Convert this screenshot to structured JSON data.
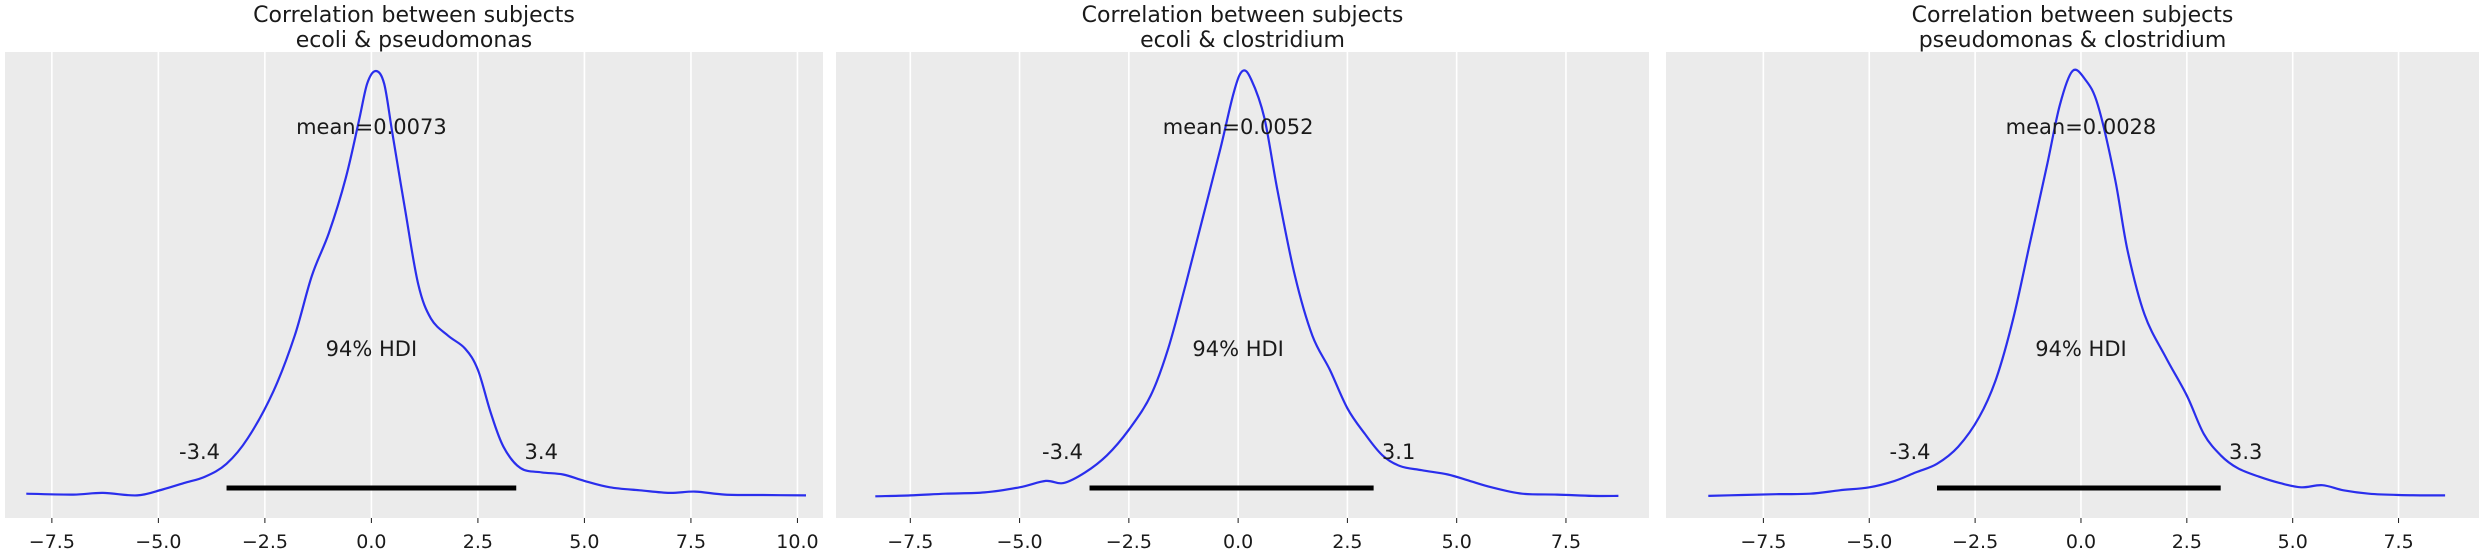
{
  "chart_data": [
    {
      "type": "area",
      "title_line1": "Correlation between subjects",
      "title_line2": "ecoli & pseudomonas",
      "mean_label": "mean=0.0073",
      "hdi_label": "94% HDI",
      "hdi_low": -3.4,
      "hdi_high": 3.4,
      "hdi_low_label": "-3.4",
      "hdi_high_label": "3.4",
      "xlim": [
        -8.6,
        10.6
      ],
      "xticks": [
        -7.5,
        -5.0,
        -2.5,
        0.0,
        2.5,
        5.0,
        7.5,
        10.0
      ],
      "xtick_labels": [
        "−7.5",
        "−5.0",
        "−2.5",
        "0.0",
        "2.5",
        "5.0",
        "7.5",
        "10.0"
      ],
      "density": [
        [
          -8.1,
          0.01
        ],
        [
          -7.0,
          0.008
        ],
        [
          -6.3,
          0.012
        ],
        [
          -5.5,
          0.006
        ],
        [
          -4.9,
          0.02
        ],
        [
          -4.4,
          0.035
        ],
        [
          -3.9,
          0.05
        ],
        [
          -3.4,
          0.08
        ],
        [
          -2.9,
          0.14
        ],
        [
          -2.3,
          0.25
        ],
        [
          -1.8,
          0.38
        ],
        [
          -1.4,
          0.52
        ],
        [
          -1.0,
          0.62
        ],
        [
          -0.6,
          0.75
        ],
        [
          -0.3,
          0.88
        ],
        [
          -0.1,
          0.97
        ],
        [
          0.1,
          1.0
        ],
        [
          0.3,
          0.97
        ],
        [
          0.5,
          0.85
        ],
        [
          0.8,
          0.67
        ],
        [
          1.1,
          0.5
        ],
        [
          1.4,
          0.42
        ],
        [
          1.8,
          0.38
        ],
        [
          2.2,
          0.35
        ],
        [
          2.5,
          0.3
        ],
        [
          2.8,
          0.2
        ],
        [
          3.1,
          0.12
        ],
        [
          3.5,
          0.07
        ],
        [
          4.0,
          0.06
        ],
        [
          4.5,
          0.055
        ],
        [
          5.0,
          0.04
        ],
        [
          5.6,
          0.025
        ],
        [
          6.3,
          0.018
        ],
        [
          7.0,
          0.012
        ],
        [
          7.6,
          0.015
        ],
        [
          8.3,
          0.008
        ],
        [
          9.2,
          0.007
        ],
        [
          10.2,
          0.006
        ]
      ]
    },
    {
      "type": "area",
      "title_line1": "Correlation between subjects",
      "title_line2": "ecoli & clostridium",
      "mean_label": "mean=0.0052",
      "hdi_label": "94% HDI",
      "hdi_low": -3.4,
      "hdi_high": 3.1,
      "hdi_low_label": "-3.4",
      "hdi_high_label": "3.1",
      "xlim": [
        -9.2,
        9.4
      ],
      "xticks": [
        -7.5,
        -5.0,
        -2.5,
        0.0,
        2.5,
        5.0,
        7.5
      ],
      "xtick_labels": [
        "−7.5",
        "−5.0",
        "−2.5",
        "0.0",
        "2.5",
        "5.0",
        "7.5"
      ],
      "density": [
        [
          -8.3,
          0.004
        ],
        [
          -7.5,
          0.006
        ],
        [
          -6.7,
          0.01
        ],
        [
          -5.8,
          0.013
        ],
        [
          -5.0,
          0.025
        ],
        [
          -4.4,
          0.04
        ],
        [
          -4.0,
          0.035
        ],
        [
          -3.5,
          0.06
        ],
        [
          -3.0,
          0.1
        ],
        [
          -2.5,
          0.16
        ],
        [
          -2.0,
          0.24
        ],
        [
          -1.6,
          0.35
        ],
        [
          -1.2,
          0.5
        ],
        [
          -0.8,
          0.66
        ],
        [
          -0.4,
          0.82
        ],
        [
          -0.1,
          0.95
        ],
        [
          0.1,
          1.0
        ],
        [
          0.3,
          0.98
        ],
        [
          0.6,
          0.89
        ],
        [
          0.9,
          0.72
        ],
        [
          1.3,
          0.52
        ],
        [
          1.7,
          0.38
        ],
        [
          2.1,
          0.3
        ],
        [
          2.5,
          0.21
        ],
        [
          2.9,
          0.15
        ],
        [
          3.3,
          0.1
        ],
        [
          3.7,
          0.075
        ],
        [
          4.2,
          0.065
        ],
        [
          4.8,
          0.055
        ],
        [
          5.3,
          0.04
        ],
        [
          5.8,
          0.025
        ],
        [
          6.5,
          0.01
        ],
        [
          7.3,
          0.008
        ],
        [
          8.1,
          0.005
        ],
        [
          8.7,
          0.005
        ]
      ]
    },
    {
      "type": "area",
      "title_line1": "Correlation between subjects",
      "title_line2": "pseudomonas & clostridium",
      "mean_label": "mean=0.0028",
      "hdi_label": "94% HDI",
      "hdi_low": -3.4,
      "hdi_high": 3.3,
      "hdi_low_label": "-3.4",
      "hdi_high_label": "3.3",
      "xlim": [
        -9.8,
        9.4
      ],
      "xticks": [
        -7.5,
        -5.0,
        -2.5,
        0.0,
        2.5,
        5.0,
        7.5
      ],
      "xtick_labels": [
        "−7.5",
        "−5.0",
        "−2.5",
        "0.0",
        "2.5",
        "5.0",
        "7.5"
      ],
      "density": [
        [
          -8.8,
          0.005
        ],
        [
          -8.0,
          0.007
        ],
        [
          -7.2,
          0.009
        ],
        [
          -6.4,
          0.01
        ],
        [
          -5.7,
          0.018
        ],
        [
          -5.0,
          0.025
        ],
        [
          -4.4,
          0.04
        ],
        [
          -3.9,
          0.06
        ],
        [
          -3.4,
          0.08
        ],
        [
          -2.9,
          0.12
        ],
        [
          -2.4,
          0.19
        ],
        [
          -2.0,
          0.28
        ],
        [
          -1.6,
          0.42
        ],
        [
          -1.2,
          0.6
        ],
        [
          -0.8,
          0.78
        ],
        [
          -0.5,
          0.92
        ],
        [
          -0.2,
          1.0
        ],
        [
          0.1,
          0.98
        ],
        [
          0.4,
          0.92
        ],
        [
          0.8,
          0.75
        ],
        [
          1.1,
          0.58
        ],
        [
          1.5,
          0.43
        ],
        [
          2.0,
          0.33
        ],
        [
          2.5,
          0.24
        ],
        [
          2.9,
          0.15
        ],
        [
          3.3,
          0.1
        ],
        [
          3.7,
          0.07
        ],
        [
          4.2,
          0.05
        ],
        [
          4.7,
          0.035
        ],
        [
          5.2,
          0.025
        ],
        [
          5.7,
          0.03
        ],
        [
          6.2,
          0.018
        ],
        [
          6.8,
          0.01
        ],
        [
          7.5,
          0.007
        ],
        [
          8.6,
          0.006
        ]
      ]
    }
  ]
}
